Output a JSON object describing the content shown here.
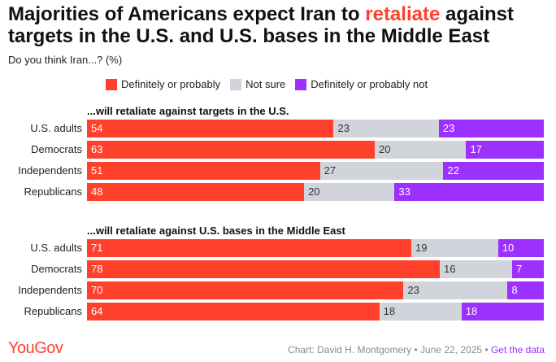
{
  "header": {
    "title_part1": "Majorities of Americans expect Iran to ",
    "title_highlight": "retaliate",
    "title_part2": " against targets in the U.S. and U.S. bases in the Middle East",
    "subtitle": "Do you think Iran...? (%)"
  },
  "legend": [
    {
      "label": "Definitely or probably",
      "color": "#ff412c"
    },
    {
      "label": "Not sure",
      "color": "#d2d4dc"
    },
    {
      "label": "Definitely or probably not",
      "color": "#9b30ff"
    }
  ],
  "chart_data": {
    "type": "bar",
    "stacked": true,
    "orientation": "horizontal",
    "xlim": [
      0,
      100
    ],
    "panels": [
      {
        "title": "...will retaliate against targets in the U.S.",
        "categories": [
          "U.S. adults",
          "Democrats",
          "Independents",
          "Republicans"
        ],
        "series": [
          {
            "name": "Definitely or probably",
            "values": [
              54,
              63,
              51,
              48
            ]
          },
          {
            "name": "Not sure",
            "values": [
              23,
              20,
              27,
              20
            ]
          },
          {
            "name": "Definitely or probably not",
            "values": [
              23,
              17,
              22,
              33
            ]
          }
        ]
      },
      {
        "title": "...will retaliate against U.S. bases in the Middle East",
        "categories": [
          "U.S. adults",
          "Democrats",
          "Independents",
          "Republicans"
        ],
        "series": [
          {
            "name": "Definitely or probably",
            "values": [
              71,
              78,
              70,
              64
            ]
          },
          {
            "name": "Not sure",
            "values": [
              19,
              16,
              23,
              18
            ]
          },
          {
            "name": "Definitely or probably not",
            "values": [
              10,
              7,
              8,
              18
            ]
          }
        ]
      }
    ]
  },
  "footer": {
    "logo": "YouGov",
    "credit": "Chart: David H. Montgomery • June 22, 2025 • ",
    "link": "Get the data"
  }
}
